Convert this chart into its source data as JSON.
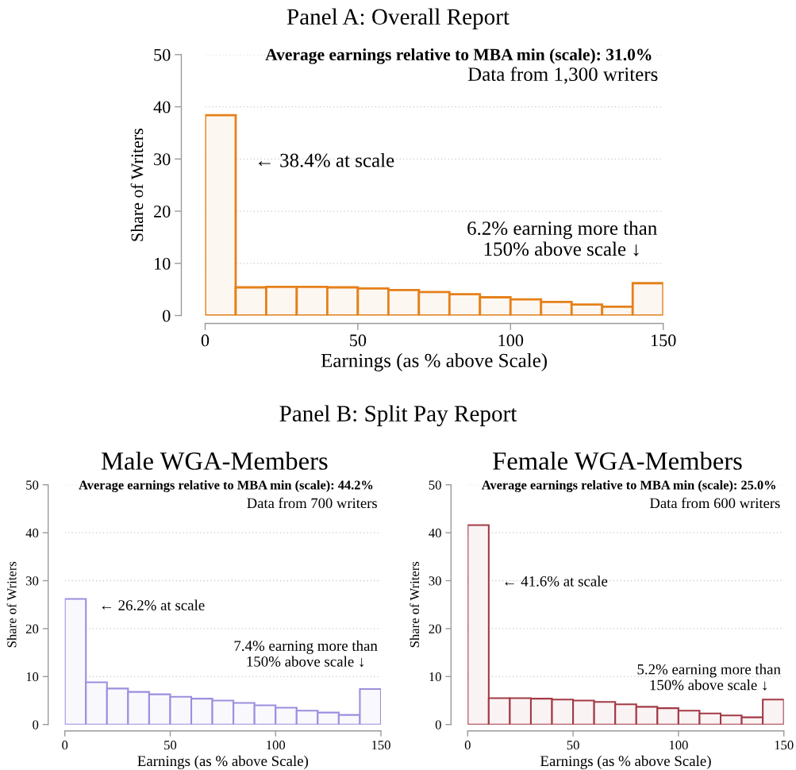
{
  "chart_data": [
    {
      "type": "histogram",
      "title": "Panel A: Overall Report",
      "xlabel": "Earnings (as % above Scale)",
      "ylabel": "Share of Writers",
      "bins": [
        0,
        10,
        20,
        30,
        40,
        50,
        60,
        70,
        80,
        90,
        100,
        110,
        120,
        130,
        140,
        150
      ],
      "series": [
        {
          "color": "#e5801a",
          "values": [
            38.4,
            5.4,
            5.5,
            5.5,
            5.4,
            5.2,
            4.9,
            4.5,
            4.1,
            3.5,
            3.1,
            2.6,
            2.1,
            1.7,
            6.2
          ]
        }
      ],
      "xlim": [
        0,
        150
      ],
      "xticks": [
        0,
        50,
        100,
        150
      ],
      "ylim": [
        0,
        50
      ],
      "yticks": [
        0,
        10,
        20,
        30,
        40,
        50
      ],
      "grid": "y",
      "annotations": [
        "Average earnings relative to MBA min (scale): 31.0%",
        "Data from 1,300 writers",
        "← 38.4% at scale",
        "6.2% earning more than\n150% above scale ↓"
      ]
    },
    {
      "type": "histogram",
      "title": "Panel B: Split Pay Report",
      "subtitle": "Male WGA-Members",
      "xlabel": "Earnings (as % above Scale)",
      "ylabel": "Share of Writers",
      "bins": [
        0,
        10,
        20,
        30,
        40,
        50,
        60,
        70,
        80,
        90,
        100,
        110,
        120,
        130,
        140,
        150
      ],
      "series": [
        {
          "color": "#9b8fdf",
          "values": [
            26.2,
            8.8,
            7.5,
            6.8,
            6.3,
            5.8,
            5.4,
            5.0,
            4.5,
            4.0,
            3.5,
            2.9,
            2.5,
            2.0,
            7.4
          ]
        }
      ],
      "xlim": [
        0,
        150
      ],
      "xticks": [
        0,
        50,
        100,
        150
      ],
      "ylim": [
        0,
        50
      ],
      "yticks": [
        0,
        10,
        20,
        30,
        40,
        50
      ],
      "grid": "y",
      "annotations": [
        "Average earnings relative to MBA min (scale): 44.2%",
        "Data from 700 writers",
        "← 26.2% at scale",
        "7.4% earning more than\n150% above scale ↓"
      ]
    },
    {
      "type": "histogram",
      "subtitle": "Female WGA-Members",
      "xlabel": "Earnings (as % above Scale)",
      "ylabel": "Share of Writers",
      "bins": [
        0,
        10,
        20,
        30,
        40,
        50,
        60,
        70,
        80,
        90,
        100,
        110,
        120,
        130,
        140,
        150
      ],
      "series": [
        {
          "color": "#a33a45",
          "values": [
            41.6,
            5.5,
            5.5,
            5.4,
            5.2,
            5.0,
            4.7,
            4.2,
            3.7,
            3.4,
            2.9,
            2.3,
            1.9,
            1.5,
            5.2
          ]
        }
      ],
      "xlim": [
        0,
        150
      ],
      "xticks": [
        0,
        50,
        100,
        150
      ],
      "ylim": [
        0,
        50
      ],
      "yticks": [
        0,
        10,
        20,
        30,
        40,
        50
      ],
      "grid": "y",
      "annotations": [
        "Average earnings relative to MBA min (scale): 25.0%",
        "Data from 600 writers",
        "← 41.6% at scale",
        "5.2% earning more than\n150% above scale ↓"
      ]
    }
  ]
}
